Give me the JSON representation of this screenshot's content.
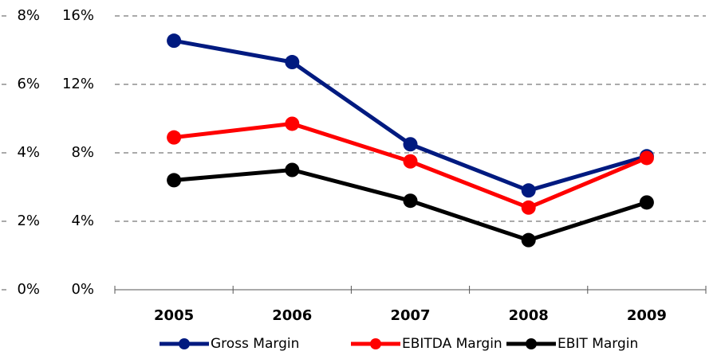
{
  "chart_data": {
    "type": "line",
    "categories": [
      "2005",
      "2006",
      "2007",
      "2008",
      "2009"
    ],
    "series": [
      {
        "name": "Gross Margin",
        "color": "#001a80",
        "values": [
          14.55,
          13.3,
          8.5,
          5.8,
          7.8
        ]
      },
      {
        "name": "EBITDA Margin",
        "color": "#ff0000",
        "values": [
          8.9,
          9.7,
          7.5,
          4.8,
          7.7
        ]
      },
      {
        "name": "EBIT Margin",
        "color": "#000000",
        "axis": "y2",
        "values": [
          3.2,
          3.5,
          2.6,
          1.45,
          2.55
        ]
      }
    ],
    "ylim": [
      0,
      16
    ],
    "yticks": [
      {
        "value": 0,
        "label": "0%"
      },
      {
        "value": 4,
        "label": "4%"
      },
      {
        "value": 8,
        "label": "8%"
      },
      {
        "value": 12,
        "label": "12%"
      },
      {
        "value": 16,
        "label": "16%"
      }
    ],
    "y2lim": [
      0,
      8
    ],
    "y2ticks": [
      {
        "value": 0,
        "label": "0%"
      },
      {
        "value": 2,
        "label": "2%"
      },
      {
        "value": 4,
        "label": "4%"
      },
      {
        "value": 6,
        "label": "6%"
      },
      {
        "value": 8,
        "label": "8%"
      }
    ],
    "grid": true
  }
}
